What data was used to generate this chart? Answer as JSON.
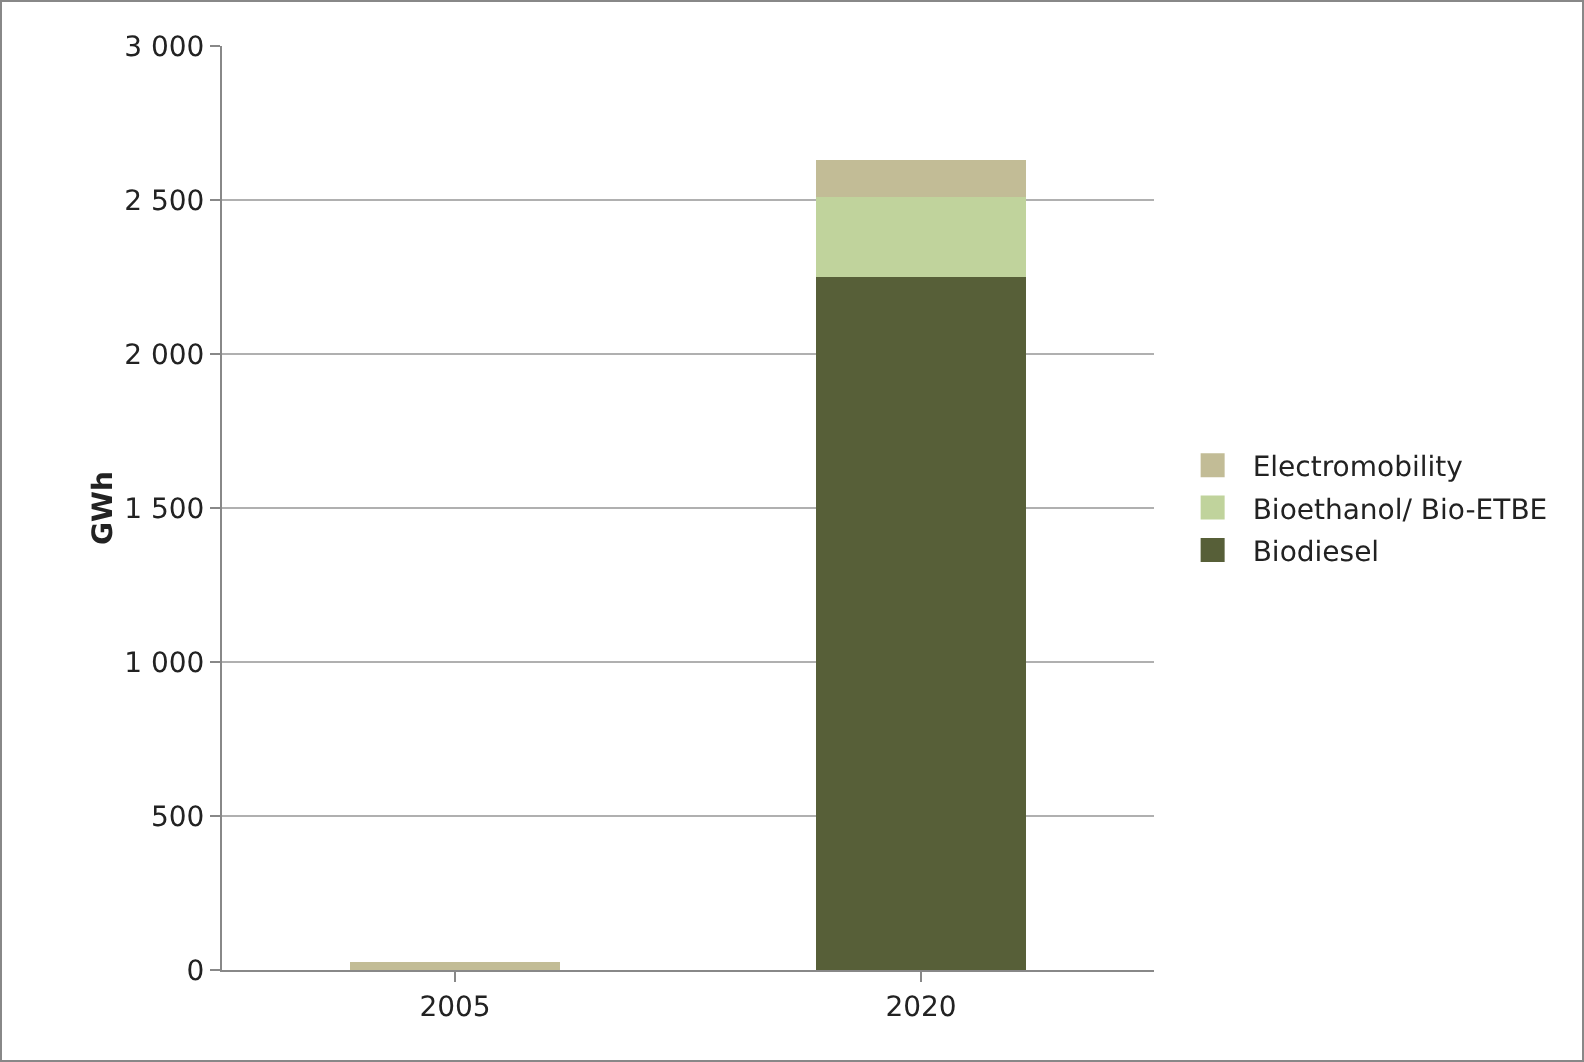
{
  "chart_data": {
    "type": "bar",
    "ylabel": "GWh",
    "categories": [
      "2005",
      "2020"
    ],
    "stacked": true,
    "series": [
      {
        "name": "Biodiesel",
        "color": "#575f38",
        "values": [
          0,
          2250
        ]
      },
      {
        "name": "Bioethanol/ Bio-ETBE",
        "color": "#c0d39c",
        "values": [
          0,
          260
        ]
      },
      {
        "name": "Electromobility",
        "color": "#c2bc96",
        "values": [
          25,
          120
        ]
      }
    ],
    "ylim": [
      0,
      3000
    ],
    "yticks": [
      {
        "value": 0,
        "label": "0"
      },
      {
        "value": 500,
        "label": "500"
      },
      {
        "value": 1000,
        "label": "1 000"
      },
      {
        "value": 1500,
        "label": "1 500"
      },
      {
        "value": 2000,
        "label": "2 000"
      },
      {
        "value": 2500,
        "label": "2 500"
      },
      {
        "value": 3000,
        "label": "3 000"
      }
    ],
    "grid": "y",
    "legend": "right"
  }
}
